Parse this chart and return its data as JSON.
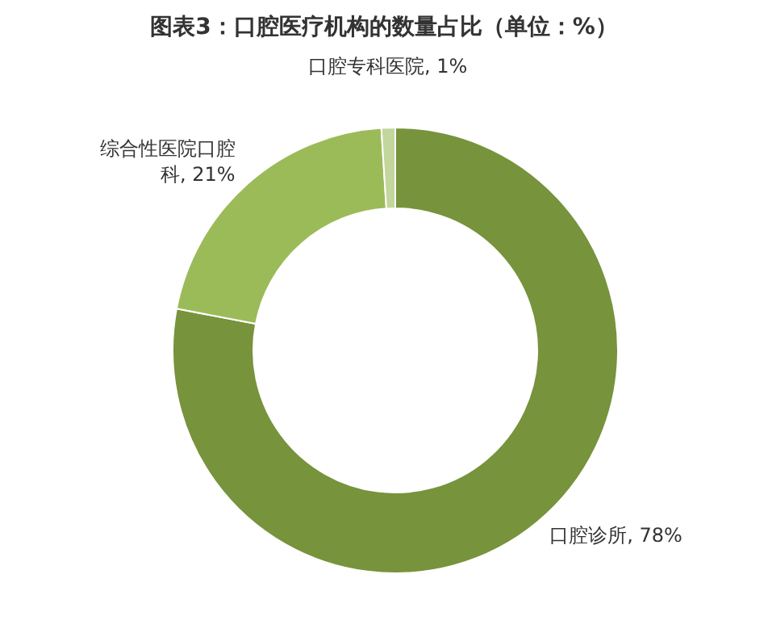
{
  "chart_data": {
    "type": "donut",
    "title": "图表3：口腔医疗机构的数量占比（单位：%）",
    "categories": [
      "口腔诊所",
      "综合性医院口腔科",
      "口腔专科医院"
    ],
    "values": [
      78,
      21,
      1
    ],
    "colors": [
      "#77933c",
      "#9bbb59",
      "#c3d69b"
    ],
    "value_labels": [
      "78%",
      "21%",
      "1%"
    ],
    "legend": false
  }
}
